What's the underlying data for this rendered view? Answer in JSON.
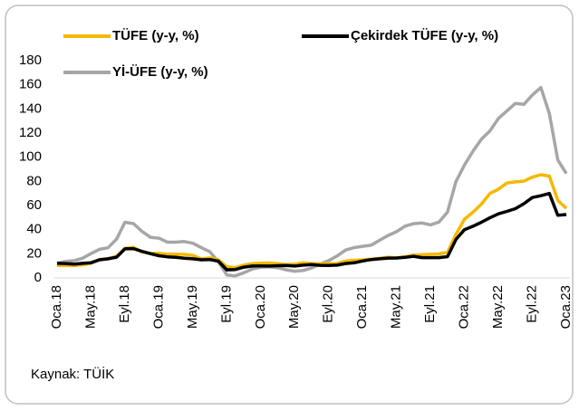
{
  "chart_data": {
    "type": "line",
    "categories": [
      "Oca.18",
      null,
      null,
      null,
      "May.18",
      null,
      null,
      null,
      "Eyl.18",
      null,
      null,
      null,
      "Oca.19",
      null,
      null,
      null,
      "May.19",
      null,
      null,
      null,
      "Eyl.19",
      null,
      null,
      null,
      "Oca.20",
      null,
      null,
      null,
      "May.20",
      null,
      null,
      null,
      "Eyl.20",
      null,
      null,
      null,
      "Oca.21",
      null,
      null,
      null,
      "May.21",
      null,
      null,
      null,
      "Eyl.21",
      null,
      null,
      null,
      "Oca.22",
      null,
      null,
      null,
      "May.22",
      null,
      null,
      null,
      "Eyl.22",
      null,
      null,
      null,
      "Oca.23"
    ],
    "series": [
      {
        "name": "TÜFE (y-y, %)",
        "color": "#f5b800",
        "values": [
          10.35,
          10.26,
          10.23,
          10.85,
          12.15,
          15.39,
          15.85,
          17.9,
          24.52,
          25.24,
          21.62,
          20.3,
          20.35,
          19.67,
          19.71,
          19.5,
          18.71,
          15.72,
          16.65,
          15.01,
          9.26,
          8.55,
          10.56,
          11.84,
          12.15,
          12.37,
          11.86,
          10.94,
          11.39,
          12.62,
          11.76,
          11.77,
          11.75,
          11.89,
          14.03,
          14.6,
          14.97,
          15.61,
          16.19,
          17.14,
          16.59,
          17.53,
          18.95,
          19.25,
          19.58,
          19.89,
          21.31,
          36.08,
          48.69,
          54.44,
          61.14,
          69.97,
          73.5,
          78.62,
          79.6,
          80.21,
          83.45,
          85.51,
          84.39,
          64.27,
          57.68
        ]
      },
      {
        "name": "Çekirdek TÜFE (y-y, %)",
        "color": "#000000",
        "values": [
          12.1,
          11.9,
          11.5,
          12.1,
          12.6,
          15.0,
          15.8,
          17.2,
          24.1,
          24.3,
          22.0,
          20.1,
          18.4,
          17.5,
          17.0,
          16.3,
          15.8,
          15.0,
          15.2,
          13.9,
          6.7,
          7.0,
          8.9,
          9.8,
          9.9,
          9.8,
          10.1,
          10.3,
          9.8,
          10.6,
          11.1,
          10.4,
          10.3,
          10.6,
          11.9,
          12.5,
          14.0,
          15.2,
          15.8,
          16.4,
          16.5,
          17.0,
          17.9,
          16.8,
          16.8,
          16.8,
          17.6,
          31.9,
          40.0,
          42.8,
          46.1,
          49.8,
          53.1,
          55.1,
          57.4,
          61.5,
          66.6,
          68.1,
          70.0,
          51.9,
          52.5
        ]
      },
      {
        "name": "Yİ-ÜFE (y-y, %)",
        "color": "#a6a6a6",
        "values": [
          12.14,
          13.71,
          14.28,
          16.37,
          20.16,
          23.71,
          25.0,
          32.13,
          46.15,
          45.01,
          38.54,
          33.64,
          32.93,
          29.59,
          29.64,
          30.12,
          28.71,
          25.04,
          21.66,
          13.45,
          2.45,
          1.7,
          4.26,
          7.36,
          8.84,
          9.26,
          8.5,
          6.71,
          5.53,
          6.17,
          8.33,
          11.53,
          14.33,
          18.2,
          23.11,
          25.15,
          26.16,
          27.09,
          31.2,
          35.17,
          38.33,
          42.89,
          44.92,
          45.52,
          43.96,
          46.31,
          54.62,
          79.89,
          93.53,
          105.01,
          114.97,
          121.82,
          132.16,
          138.31,
          144.61,
          143.75,
          151.5,
          157.69,
          136.02,
          97.72,
          86.46
        ]
      }
    ],
    "ylim": [
      0,
      180
    ],
    "yticks": [
      0,
      20,
      40,
      60,
      80,
      100,
      120,
      140,
      160,
      180
    ],
    "source": "Kaynak: TÜİK"
  }
}
